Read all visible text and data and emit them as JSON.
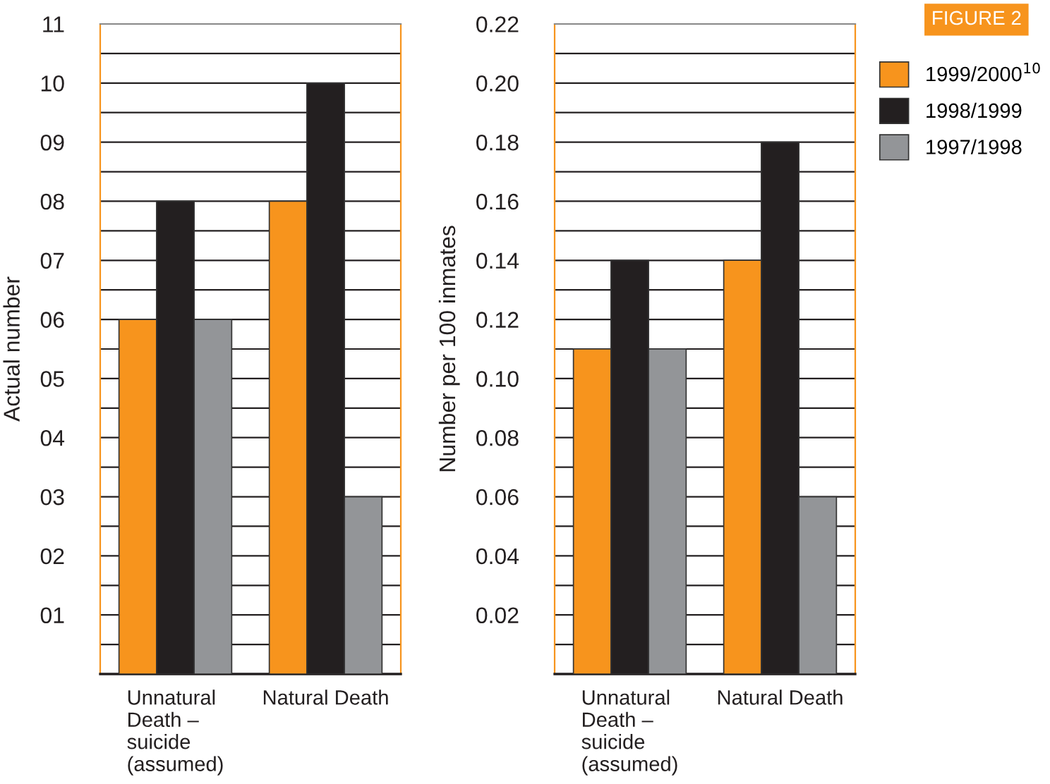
{
  "chart_data": [
    {
      "type": "bar",
      "ylabel": "Actual number",
      "categories": [
        "Unnatural\nDeath –\nsuicide\n(assumed)",
        "Natural Death"
      ],
      "series": [
        {
          "color": "#f7941d",
          "values": [
            6,
            8
          ]
        },
        {
          "color": "#231f20",
          "values": [
            8,
            10
          ]
        },
        {
          "color": "#939598",
          "values": [
            6,
            3
          ]
        }
      ],
      "ylim": [
        0,
        11
      ],
      "yticks": [
        {
          "value": 0,
          "label": null
        },
        {
          "value": 0.5,
          "label": null
        },
        {
          "value": 1,
          "label": "01"
        },
        {
          "value": 1.5,
          "label": null
        },
        {
          "value": 2,
          "label": "02"
        },
        {
          "value": 2.5,
          "label": null
        },
        {
          "value": 3,
          "label": "03"
        },
        {
          "value": 3.5,
          "label": null
        },
        {
          "value": 4,
          "label": "04"
        },
        {
          "value": 4.5,
          "label": null
        },
        {
          "value": 5,
          "label": "05"
        },
        {
          "value": 5.5,
          "label": null
        },
        {
          "value": 6,
          "label": "06"
        },
        {
          "value": 6.5,
          "label": null
        },
        {
          "value": 7,
          "label": "07"
        },
        {
          "value": 7.5,
          "label": null
        },
        {
          "value": 8,
          "label": "08"
        },
        {
          "value": 8.5,
          "label": null
        },
        {
          "value": 9,
          "label": "09"
        },
        {
          "value": 9.5,
          "label": null
        },
        10,
        {
          "value": 10.5,
          "label": null
        },
        11
      ],
      "grid": "y",
      "legend": false
    },
    {
      "type": "bar",
      "ylabel": "Number per 100 inmates",
      "categories": [
        "Unnatural\nDeath –\nsuicide\n(assumed)",
        "Natural Death"
      ],
      "series": [
        {
          "name": "1999/2000$^{10}$",
          "color": "#f7941d",
          "values": [
            0.11,
            0.14
          ]
        },
        {
          "name": "1998/1999",
          "color": "#231f20",
          "values": [
            0.14,
            0.18
          ]
        },
        {
          "name": "1997/1998",
          "color": "#939598",
          "values": [
            0.11,
            0.06
          ]
        }
      ],
      "ylim": [
        0,
        0.22
      ],
      "yticks": [
        {
          "value": 0,
          "label": null
        },
        {
          "value": 0.01,
          "label": null
        },
        0.02,
        {
          "value": 0.03,
          "label": null
        },
        0.04,
        {
          "value": 0.05,
          "label": null
        },
        0.06,
        {
          "value": 0.07,
          "label": null
        },
        0.08,
        {
          "value": 0.09,
          "label": null
        },
        {
          "value": 0.1,
          "label": "0.10"
        },
        {
          "value": 0.11,
          "label": null
        },
        0.12,
        {
          "value": 0.13,
          "label": null
        },
        0.14,
        {
          "value": 0.15,
          "label": null
        },
        0.16,
        {
          "value": 0.17,
          "label": null
        },
        0.18,
        {
          "value": 0.19,
          "label": null
        },
        {
          "value": 0.2,
          "label": "0.20"
        },
        {
          "value": 0.21,
          "label": null
        },
        0.22
      ],
      "grid": "y",
      "legend": "right",
      "annotations": [
        "FIGURE 2"
      ]
    }
  ]
}
